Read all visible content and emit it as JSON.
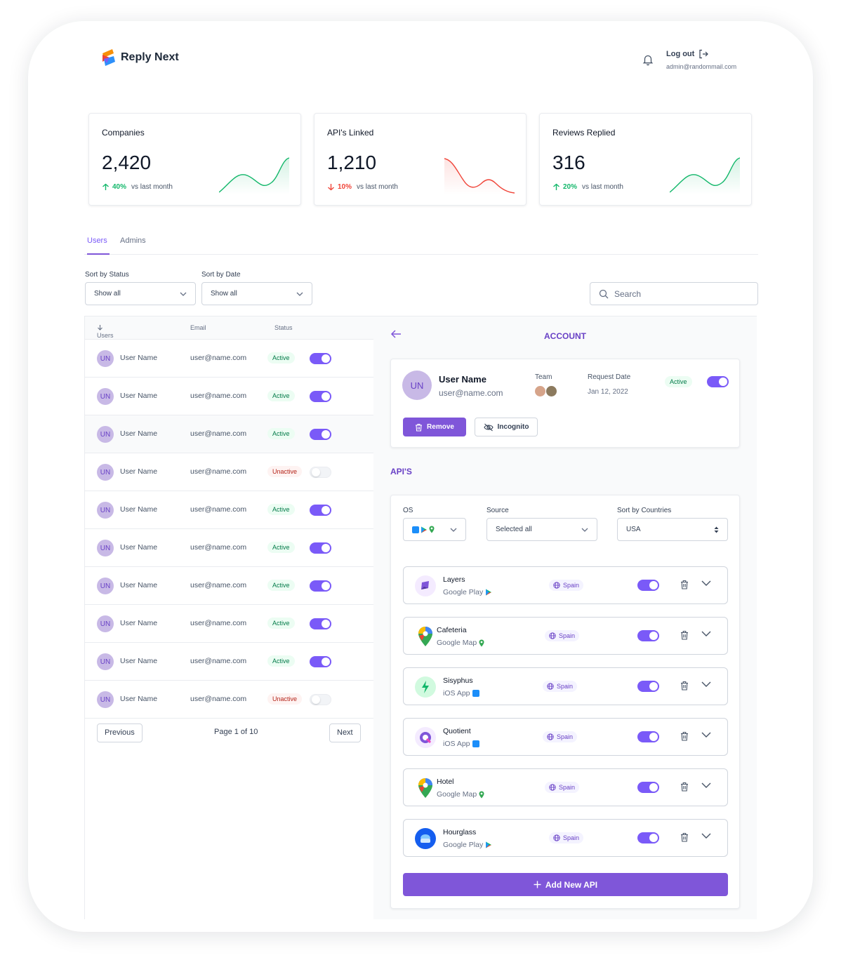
{
  "brand": {
    "name": "Reply Next"
  },
  "header": {
    "logout_label": "Log out",
    "admin_email": "admin@randommail.com"
  },
  "stats": [
    {
      "title": "Companies",
      "value": "2,420",
      "delta": "40%",
      "vs": "vs last month",
      "trend": "up",
      "color": "#12b76a"
    },
    {
      "title": "API's Linked",
      "value": "1,210",
      "delta": "10%",
      "vs": "vs last month",
      "trend": "down",
      "color": "#f04438"
    },
    {
      "title": "Reviews Replied",
      "value": "316",
      "delta": "20%",
      "vs": "vs last month",
      "trend": "up",
      "color": "#12b76a"
    }
  ],
  "tabs": [
    {
      "label": "Users",
      "active": true
    },
    {
      "label": "Admins",
      "active": false
    }
  ],
  "filters": {
    "status_label": "Sort by Status",
    "status_value": "Show all",
    "date_label": "Sort by Date",
    "date_value": "Show all",
    "search_placeholder": "Search"
  },
  "table": {
    "headers": {
      "users": "Users",
      "email": "Email",
      "status": "Status"
    },
    "rows": [
      {
        "initials": "UN",
        "name": "User Name",
        "email": "user@name.com",
        "status": "Active",
        "enabled": true
      },
      {
        "initials": "UN",
        "name": "User Name",
        "email": "user@name.com",
        "status": "Active",
        "enabled": true
      },
      {
        "initials": "UN",
        "name": "User Name",
        "email": "user@name.com",
        "status": "Active",
        "enabled": true
      },
      {
        "initials": "UN",
        "name": "User Name",
        "email": "user@name.com",
        "status": "Unactive",
        "enabled": false
      },
      {
        "initials": "UN",
        "name": "User Name",
        "email": "user@name.com",
        "status": "Active",
        "enabled": true
      },
      {
        "initials": "UN",
        "name": "User Name",
        "email": "user@name.com",
        "status": "Active",
        "enabled": true
      },
      {
        "initials": "UN",
        "name": "User Name",
        "email": "user@name.com",
        "status": "Active",
        "enabled": true
      },
      {
        "initials": "UN",
        "name": "User Name",
        "email": "user@name.com",
        "status": "Active",
        "enabled": true
      },
      {
        "initials": "UN",
        "name": "User Name",
        "email": "user@name.com",
        "status": "Active",
        "enabled": true
      },
      {
        "initials": "UN",
        "name": "User Name",
        "email": "user@name.com",
        "status": "Unactive",
        "enabled": false
      }
    ],
    "pagination": {
      "previous": "Previous",
      "page_info": "Page 1 of 10",
      "next": "Next"
    }
  },
  "account": {
    "title": "ACCOUNT",
    "initials": "UN",
    "name": "User Name",
    "email": "user@name.com",
    "team_label": "Team",
    "request_date_label": "Request Date",
    "request_date": "Jan 12, 2022",
    "status": "Active",
    "enabled": true,
    "remove_label": "Remove",
    "incognito_label": "Incognito"
  },
  "apis": {
    "title": "API'S",
    "os_label": "OS",
    "source_label": "Source",
    "source_value": "Selected all",
    "countries_label": "Sort by Countries",
    "countries_value": "USA",
    "items": [
      {
        "name": "Layers",
        "source": "Google Play",
        "source_icon": "google-play-icon",
        "country": "Spain",
        "enabled": true,
        "logo": "layers"
      },
      {
        "name": "Cafeteria",
        "source": "Google Map",
        "source_icon": "google-maps-icon",
        "country": "Spain",
        "enabled": true,
        "logo": "maps"
      },
      {
        "name": "Sisyphus",
        "source": "iOS App",
        "source_icon": "app-store-icon",
        "country": "Spain",
        "enabled": true,
        "logo": "sisyphus"
      },
      {
        "name": "Quotient",
        "source": "iOS App",
        "source_icon": "app-store-icon",
        "country": "Spain",
        "enabled": true,
        "logo": "quotient"
      },
      {
        "name": "Hotel",
        "source": "Google Map",
        "source_icon": "google-maps-icon",
        "country": "Spain",
        "enabled": true,
        "logo": "maps"
      },
      {
        "name": "Hourglass",
        "source": "Google Play",
        "source_icon": "google-play-icon",
        "country": "Spain",
        "enabled": true,
        "logo": "hourglass"
      }
    ],
    "add_label": "Add New API"
  },
  "colors": {
    "accent": "#7f56d9",
    "success": "#12b76a",
    "danger": "#f04438"
  }
}
